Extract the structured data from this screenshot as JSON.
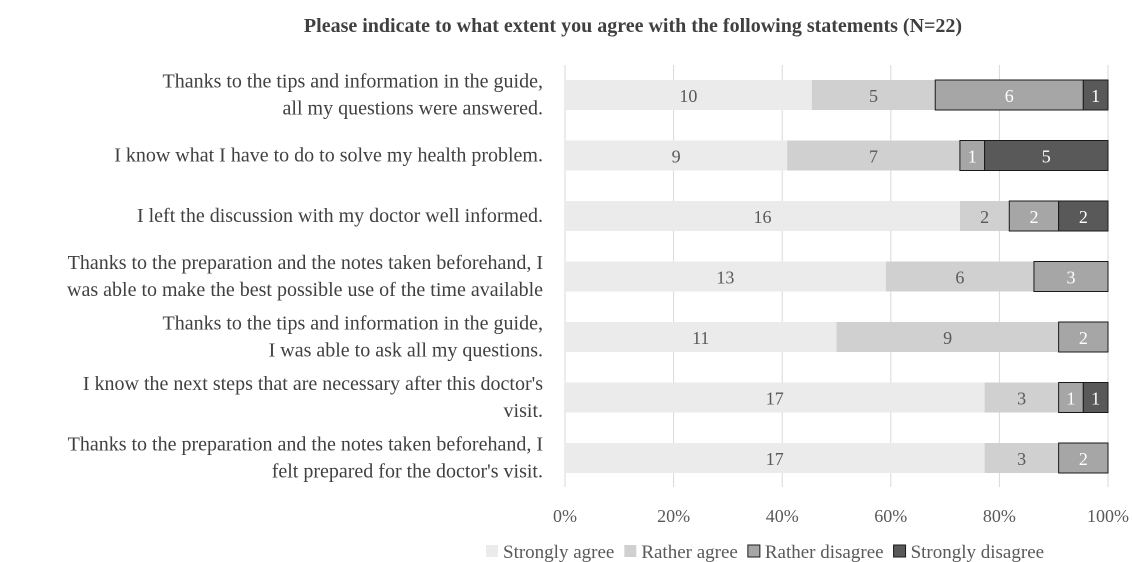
{
  "chart_data": {
    "type": "bar",
    "stacked": "percent",
    "orientation": "horizontal",
    "title": "Please indicate to what extent you agree with the following statements (N=22)",
    "categories": [
      [
        "Thanks to the tips and information in the guide,",
        "all my questions were answered."
      ],
      [
        "I know what I have to do to solve my health problem."
      ],
      [
        "I left the discussion with my doctor well informed."
      ],
      [
        "Thanks to the preparation and the notes taken beforehand, I",
        "was able to make the best possible use of the time available"
      ],
      [
        "Thanks to the tips and information in the guide,",
        "I was able to ask all my questions."
      ],
      [
        "I know the next steps that are necessary after this doctor's",
        "visit."
      ],
      [
        "Thanks to the preparation and the notes taken beforehand, I",
        "felt prepared for the doctor's visit."
      ]
    ],
    "series": [
      {
        "name": "Strongly agree",
        "color": "#ebebeb",
        "label_color": "#595959",
        "values": [
          10,
          9,
          16,
          13,
          11,
          17,
          17
        ]
      },
      {
        "name": "Rather agree",
        "color": "#d0d0d0",
        "label_color": "#595959",
        "values": [
          5,
          7,
          2,
          6,
          9,
          3,
          3
        ]
      },
      {
        "name": "Rather disagree",
        "color": "#a6a6a6",
        "label_color": "#ffffff",
        "values": [
          6,
          1,
          2,
          3,
          2,
          1,
          2
        ]
      },
      {
        "name": "Strongly disagree",
        "color": "#595959",
        "label_color": "#ffffff",
        "values": [
          1,
          5,
          2,
          0,
          0,
          1,
          0
        ]
      }
    ],
    "xlim": [
      0,
      100
    ],
    "x_ticks": [
      "0%",
      "20%",
      "40%",
      "60%",
      "80%",
      "100%"
    ],
    "grid": true,
    "legend_position": "bottom"
  }
}
